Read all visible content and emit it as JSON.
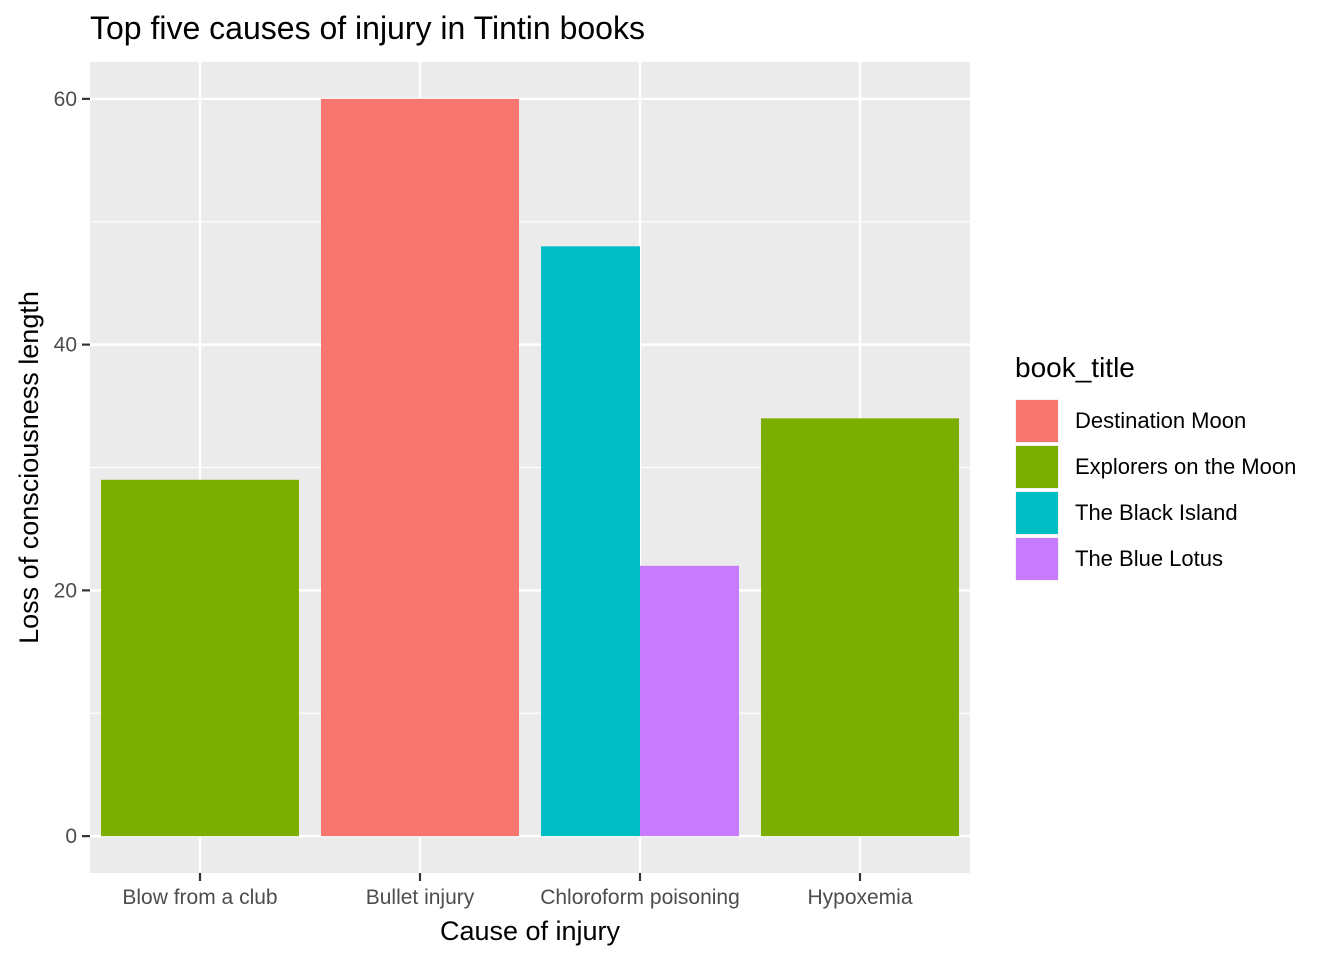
{
  "chart_data": {
    "type": "bar",
    "title": "Top five causes of injury in Tintin books",
    "xlabel": "Cause of injury",
    "ylabel": "Loss of consciousness length",
    "categories": [
      "Blow from a club",
      "Bullet injury",
      "Chloroform poisoning",
      "Hypoxemia"
    ],
    "ylim": [
      -3,
      63
    ],
    "yticks": [
      0,
      20,
      40,
      60
    ],
    "legend_title": "book_title",
    "legend_position": "right",
    "grid": true,
    "background": "#ebebeb",
    "series": [
      {
        "name": "Destination Moon",
        "color": "#F8766D"
      },
      {
        "name": "Explorers on the Moon",
        "color": "#7CAE00"
      },
      {
        "name": "The Black Island",
        "color": "#00BFC4"
      },
      {
        "name": "The Blue Lotus",
        "color": "#C77CFF"
      }
    ],
    "bars": [
      {
        "category": "Blow from a club",
        "series": "Explorers on the Moon",
        "value": 29
      },
      {
        "category": "Bullet injury",
        "series": "Destination Moon",
        "value": 60
      },
      {
        "category": "Chloroform poisoning",
        "series": "The Black Island",
        "value": 48
      },
      {
        "category": "Chloroform poisoning",
        "series": "The Blue Lotus",
        "value": 22
      },
      {
        "category": "Hypoxemia",
        "series": "Explorers on the Moon",
        "value": 34
      }
    ]
  }
}
